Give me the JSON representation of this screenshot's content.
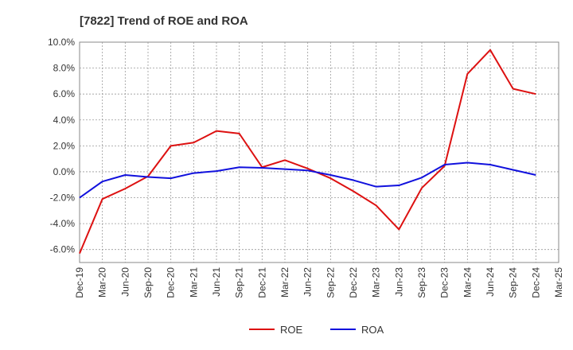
{
  "chart_data": {
    "type": "line",
    "title": "[7822]  Trend of ROE and ROA",
    "xlabel": "",
    "ylabel": "",
    "categories": [
      "Dec-19",
      "Mar-20",
      "Jun-20",
      "Sep-20",
      "Dec-20",
      "Mar-21",
      "Jun-21",
      "Sep-21",
      "Dec-21",
      "Mar-22",
      "Jun-22",
      "Sep-22",
      "Dec-22",
      "Mar-23",
      "Jun-23",
      "Sep-23",
      "Dec-23",
      "Mar-24",
      "Jun-24",
      "Sep-24",
      "Dec-24",
      "Mar-25"
    ],
    "ylim": [
      -7.0,
      10.0
    ],
    "yticks": [
      10.0,
      8.0,
      6.0,
      4.0,
      2.0,
      0.0,
      -2.0,
      -4.0,
      -6.0
    ],
    "ytick_labels": [
      "10.0%",
      "8.0%",
      "6.0%",
      "4.0%",
      "2.0%",
      "0.0%",
      "-2.0%",
      "-4.0%",
      "-6.0%"
    ],
    "grid": true,
    "legend_position": "bottom",
    "series": [
      {
        "name": "ROE",
        "color": "#dd1111",
        "values": [
          -6.3,
          -2.1,
          -1.3,
          -0.35,
          2.0,
          2.25,
          3.15,
          2.95,
          0.35,
          0.9,
          0.25,
          -0.5,
          -1.5,
          -2.6,
          -4.45,
          -1.25,
          0.45,
          7.55,
          9.4,
          6.4,
          6.0,
          null
        ]
      },
      {
        "name": "ROA",
        "color": "#1111dd",
        "values": [
          -2.0,
          -0.75,
          -0.25,
          -0.4,
          -0.5,
          -0.1,
          0.05,
          0.35,
          0.3,
          0.2,
          0.1,
          -0.25,
          -0.65,
          -1.15,
          -1.05,
          -0.45,
          0.55,
          0.7,
          0.55,
          0.15,
          -0.25,
          null
        ]
      }
    ]
  }
}
